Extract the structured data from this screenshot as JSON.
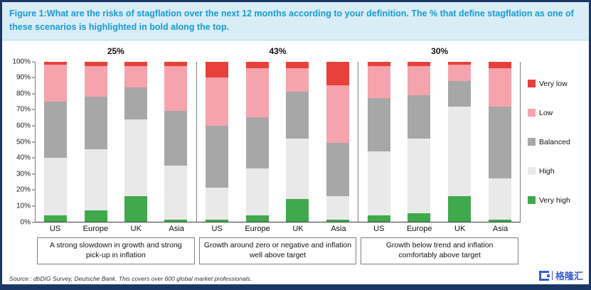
{
  "header": {
    "title": "Figure 1:What are the risks of stagflation over the next 12 months according to your definition. The % that define stagflation as one of these scenarios is highlighted in bold along the top."
  },
  "chart_data": {
    "type": "bar",
    "stacked": true,
    "unit": "%",
    "ylim": [
      0,
      100
    ],
    "yticks": [
      "100%",
      "90%",
      "80%",
      "70%",
      "60%",
      "50%",
      "40%",
      "30%",
      "20%",
      "10%",
      "0%"
    ],
    "series_order": [
      "Very high",
      "High",
      "Balanced",
      "Low",
      "Very low"
    ],
    "colors": {
      "Very high": "#3fa94c",
      "High": "#e9e9e9",
      "Balanced": "#a7a7a7",
      "Low": "#f5a3ad",
      "Very low": "#e8403a"
    },
    "legend_position": "right",
    "grid": false,
    "groups": [
      {
        "headline": "25%",
        "caption": "A strong slowdown in growth and strong pick-up in inflation",
        "bars": [
          {
            "label": "US",
            "values": {
              "Very high": 4,
              "High": 36,
              "Balanced": 35,
              "Low": 23,
              "Very low": 2
            }
          },
          {
            "label": "Europe",
            "values": {
              "Very high": 7,
              "High": 38,
              "Balanced": 33,
              "Low": 19,
              "Very low": 3
            }
          },
          {
            "label": "UK",
            "values": {
              "Very high": 16,
              "High": 48,
              "Balanced": 20,
              "Low": 13,
              "Very low": 3
            }
          },
          {
            "label": "Asia",
            "values": {
              "Very high": 1,
              "High": 34,
              "Balanced": 34,
              "Low": 28,
              "Very low": 3
            }
          }
        ]
      },
      {
        "headline": "43%",
        "caption": "Growth around zero or negative and inflation well above target",
        "bars": [
          {
            "label": "US",
            "values": {
              "Very high": 1,
              "High": 20,
              "Balanced": 39,
              "Low": 30,
              "Very low": 10
            }
          },
          {
            "label": "Europe",
            "values": {
              "Very high": 4,
              "High": 29,
              "Balanced": 32,
              "Low": 31,
              "Very low": 4
            }
          },
          {
            "label": "UK",
            "values": {
              "Very high": 14,
              "High": 38,
              "Balanced": 29,
              "Low": 15,
              "Very low": 4
            }
          },
          {
            "label": "Asia",
            "values": {
              "Very high": 1,
              "High": 15,
              "Balanced": 33,
              "Low": 36,
              "Very low": 15
            }
          }
        ]
      },
      {
        "headline": "30%",
        "caption": "Growth below trend and inflation comfortably above target",
        "bars": [
          {
            "label": "US",
            "values": {
              "Very high": 4,
              "High": 40,
              "Balanced": 33,
              "Low": 20,
              "Very low": 3
            }
          },
          {
            "label": "Europe",
            "values": {
              "Very high": 5,
              "High": 47,
              "Balanced": 27,
              "Low": 18,
              "Very low": 3
            }
          },
          {
            "label": "UK",
            "values": {
              "Very high": 16,
              "High": 56,
              "Balanced": 16,
              "Low": 10,
              "Very low": 2
            }
          },
          {
            "label": "Asia",
            "values": {
              "Very high": 1,
              "High": 26,
              "Balanced": 45,
              "Low": 24,
              "Very low": 4
            }
          }
        ]
      }
    ]
  },
  "legend": [
    {
      "label": "Very low",
      "color": "#e8403a"
    },
    {
      "label": "Low",
      "color": "#f5a3ad"
    },
    {
      "label": "Balanced",
      "color": "#a7a7a7"
    },
    {
      "label": "High",
      "color": "#e9e9e9"
    },
    {
      "label": "Very high",
      "color": "#3fa94c"
    }
  ],
  "source": "Source : dbDIG Survey, Deutsche Bank. This covers over 600 global market professionals.",
  "logo_text": "格隆汇"
}
